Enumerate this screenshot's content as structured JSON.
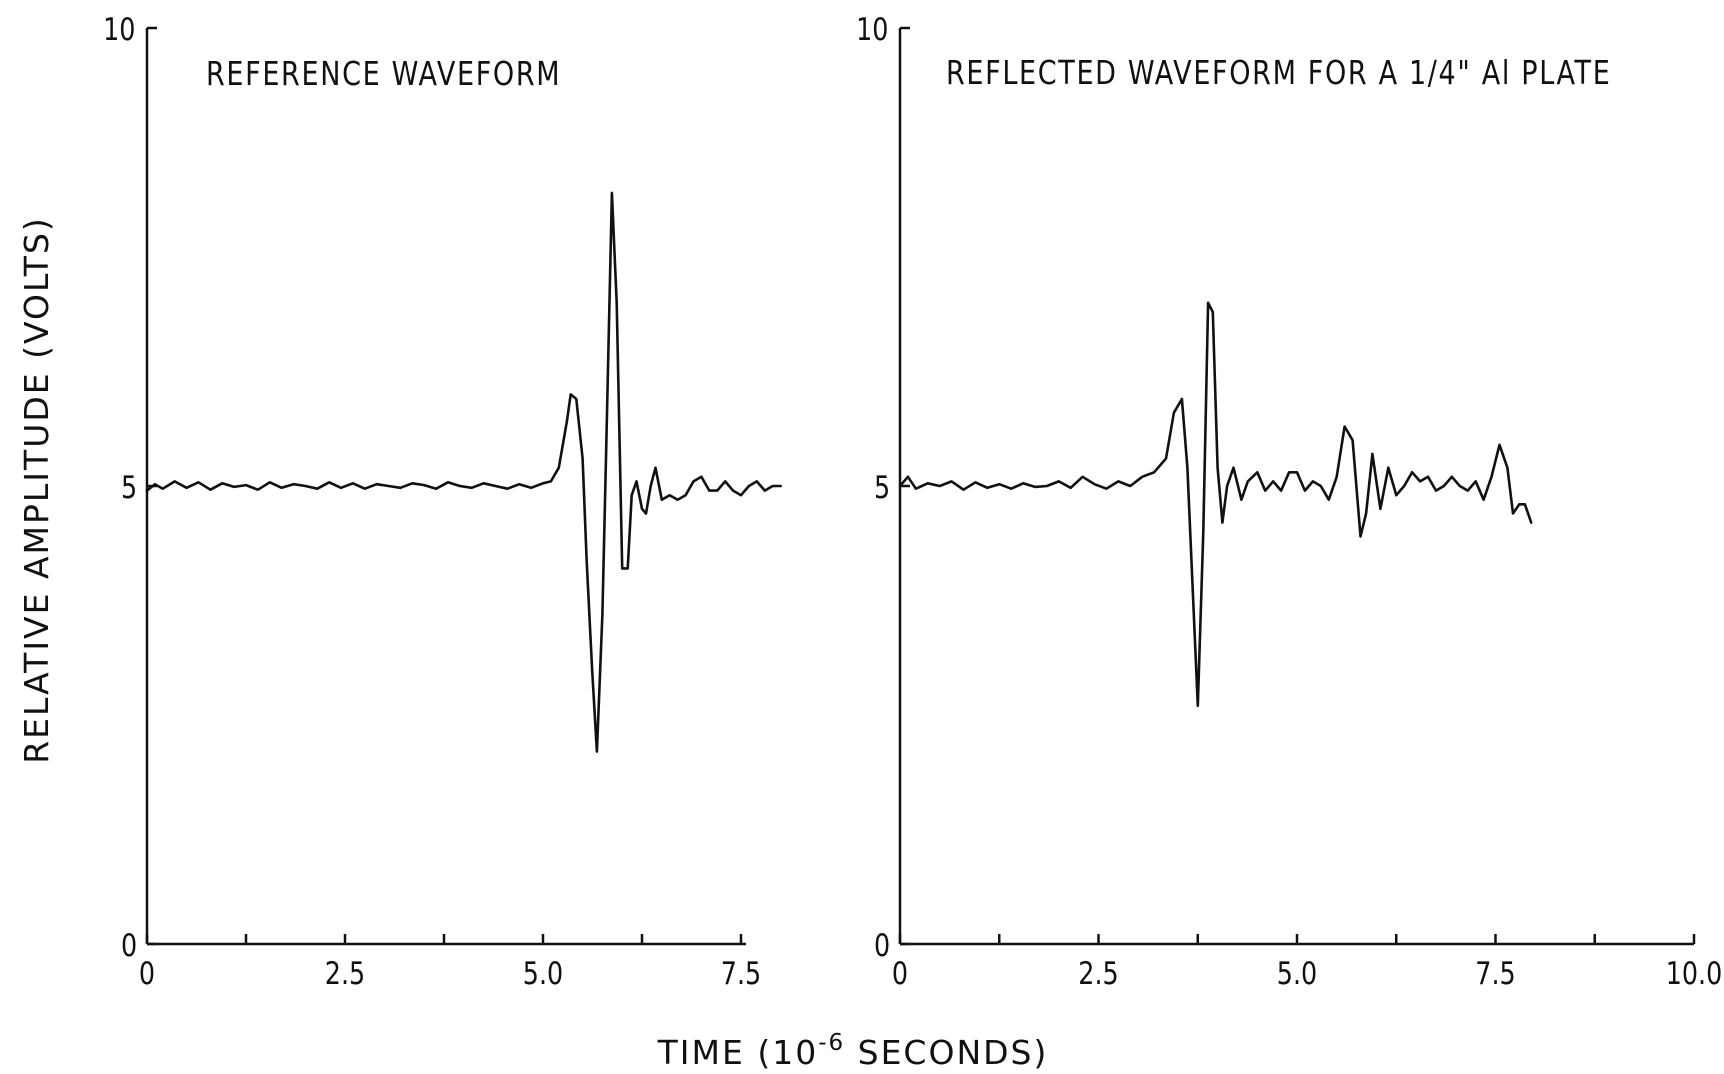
{
  "figure": {
    "ylabel": "RELATIVE AMPLITUDE (VOLTS)",
    "xlabel_prefix": "TIME (10",
    "xlabel_exponent": "-6",
    "xlabel_suffix": " SECONDS)"
  },
  "chart_data": [
    {
      "type": "line",
      "title": "REFERENCE WAVEFORM",
      "xlabel": "TIME (10-6 SECONDS)",
      "ylabel": "RELATIVE AMPLITUDE (VOLTS)",
      "xlim": [
        0,
        7.5
      ],
      "ylim": [
        0,
        10
      ],
      "x_ticks": [
        0,
        2.5,
        5.0,
        7.5
      ],
      "x_tick_labels": [
        "0",
        "2.5",
        "5.0",
        "7.5"
      ],
      "y_tick_labels": [
        "0",
        "5",
        "10"
      ],
      "grid": false,
      "series": [
        {
          "x": [
            0.0,
            0.1,
            0.2,
            0.35,
            0.5,
            0.65,
            0.8,
            0.95,
            1.1,
            1.25,
            1.4,
            1.55,
            1.7,
            1.85,
            2.0,
            2.15,
            2.3,
            2.45,
            2.6,
            2.75,
            2.9,
            3.05,
            3.2,
            3.35,
            3.5,
            3.65,
            3.8,
            3.95,
            4.1,
            4.25,
            4.4,
            4.55,
            4.7,
            4.85,
            5.0,
            5.1,
            5.2,
            5.3,
            5.35,
            5.42,
            5.5,
            5.55,
            5.62,
            5.68,
            5.75,
            5.8,
            5.87,
            5.93,
            6.0,
            6.07,
            6.12,
            6.18,
            6.25,
            6.3,
            6.36,
            6.42,
            6.5,
            6.6,
            6.7,
            6.8,
            6.9,
            7.0,
            7.1,
            7.2,
            7.3,
            7.4,
            7.5,
            7.6,
            7.7,
            7.8,
            7.9,
            8.0
          ],
          "y": [
            4.95,
            5.02,
            4.97,
            5.05,
            4.98,
            5.04,
            4.96,
            5.03,
            4.99,
            5.01,
            4.96,
            5.04,
            4.98,
            5.02,
            5.0,
            4.97,
            5.04,
            4.98,
            5.03,
            4.97,
            5.02,
            5.0,
            4.98,
            5.03,
            5.01,
            4.97,
            5.04,
            5.0,
            4.98,
            5.03,
            5.0,
            4.97,
            5.02,
            4.98,
            5.03,
            5.05,
            5.2,
            5.7,
            6.0,
            5.95,
            5.3,
            4.2,
            3.0,
            2.1,
            3.6,
            5.5,
            8.2,
            7.0,
            4.1,
            4.1,
            4.9,
            5.05,
            4.75,
            4.7,
            5.0,
            5.2,
            4.85,
            4.9,
            4.85,
            4.9,
            5.05,
            5.1,
            4.95,
            4.95,
            5.05,
            4.95,
            4.9,
            5.0,
            5.05,
            4.95,
            5.0,
            5.0
          ]
        }
      ]
    },
    {
      "type": "line",
      "title": "REFLECTED WAVEFORM FOR A 1/4\" Al PLATE",
      "xlabel": "TIME (10-6 SECONDS)",
      "ylabel": "RELATIVE AMPLITUDE (VOLTS)",
      "xlim": [
        0,
        10.0
      ],
      "ylim": [
        0,
        10
      ],
      "x_ticks": [
        0,
        2.5,
        5.0,
        7.5,
        10.0
      ],
      "x_tick_labels": [
        "0",
        "2.5",
        "5.0",
        "7.5",
        "10.0"
      ],
      "y_tick_labels": [
        "0",
        "5",
        "10"
      ],
      "grid": false,
      "series": [
        {
          "x": [
            0.0,
            0.1,
            0.2,
            0.35,
            0.5,
            0.65,
            0.8,
            0.95,
            1.1,
            1.25,
            1.4,
            1.55,
            1.7,
            1.85,
            2.0,
            2.15,
            2.3,
            2.45,
            2.6,
            2.75,
            2.9,
            3.05,
            3.2,
            3.35,
            3.45,
            3.55,
            3.62,
            3.68,
            3.75,
            3.82,
            3.88,
            3.94,
            4.0,
            4.06,
            4.12,
            4.2,
            4.3,
            4.38,
            4.5,
            4.6,
            4.7,
            4.8,
            4.9,
            5.0,
            5.1,
            5.2,
            5.3,
            5.4,
            5.5,
            5.6,
            5.7,
            5.8,
            5.87,
            5.95,
            6.05,
            6.15,
            6.25,
            6.35,
            6.45,
            6.55,
            6.65,
            6.75,
            6.85,
            6.95,
            7.05,
            7.15,
            7.25,
            7.35,
            7.45,
            7.55,
            7.65,
            7.72,
            7.8,
            7.87,
            7.95
          ],
          "y": [
            5.0,
            5.1,
            4.97,
            5.03,
            5.0,
            5.05,
            4.96,
            5.04,
            4.98,
            5.02,
            4.97,
            5.03,
            4.99,
            5.0,
            5.05,
            4.98,
            5.1,
            5.02,
            4.97,
            5.05,
            5.0,
            5.1,
            5.15,
            5.3,
            5.8,
            5.95,
            5.2,
            4.0,
            2.6,
            4.5,
            7.0,
            6.9,
            5.2,
            4.6,
            5.0,
            5.2,
            4.85,
            5.05,
            5.15,
            4.95,
            5.05,
            4.95,
            5.15,
            5.15,
            4.95,
            5.05,
            5.0,
            4.85,
            5.1,
            5.65,
            5.5,
            4.45,
            4.7,
            5.35,
            4.75,
            5.2,
            4.9,
            5.0,
            5.15,
            5.05,
            5.1,
            4.95,
            5.0,
            5.1,
            5.0,
            4.95,
            5.05,
            4.85,
            5.1,
            5.45,
            5.2,
            4.7,
            4.8,
            4.8,
            4.6
          ]
        }
      ]
    }
  ]
}
